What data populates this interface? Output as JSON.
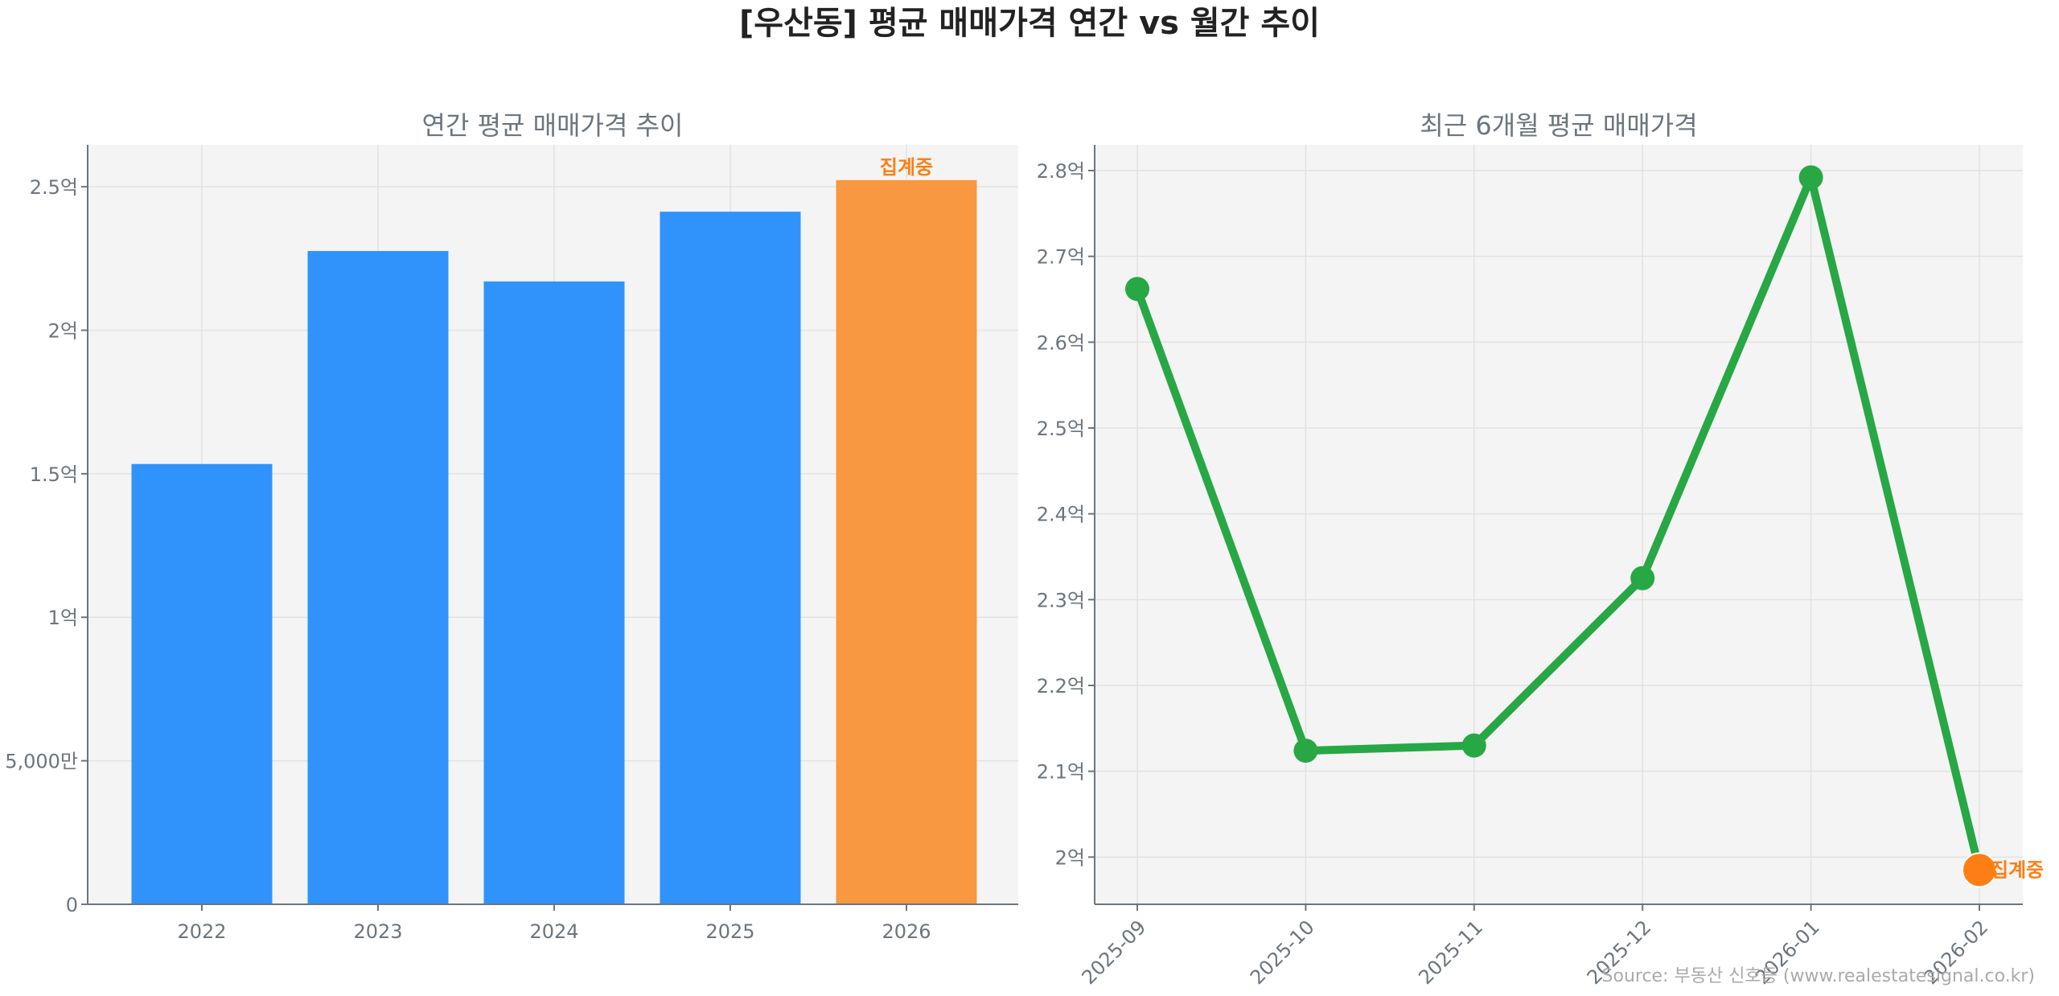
{
  "title": "[우산동] 평균 매매가격 연간 vs 월간 추이",
  "source": "Source: 부동산 신호등 (www.realestatesignal.co.kr)",
  "colors": {
    "bar": "#3093fb",
    "bar_pending": "#f89840",
    "line": "#28a745",
    "pending_marker": "#fd7e14",
    "pending_text": "#fd7e14",
    "axis_text": "#6c757d",
    "plot_bg": "#f4f4f4"
  },
  "chart_data": [
    {
      "type": "bar",
      "title": "연간 평균 매매가격 추이",
      "categories": [
        "2022",
        "2023",
        "2024",
        "2025",
        "2026"
      ],
      "values": [
        1.534,
        2.276,
        2.17,
        2.413,
        2.523
      ],
      "unit": "억",
      "ylim": [
        0,
        2.646
      ],
      "yticks": [
        0,
        0.5,
        1,
        1.5,
        2,
        2.5
      ],
      "ytick_labels": [
        "0",
        "5,000만",
        "1억",
        "1.5억",
        "2억",
        "2.5억"
      ],
      "pending_index": 4,
      "pending_label": "집계중",
      "grid": true
    },
    {
      "type": "line",
      "title": "최근 6개월 평균 매매가격",
      "categories": [
        "2025-09",
        "2025-10",
        "2025-11",
        "2025-12",
        "2026-01",
        "2026-02"
      ],
      "values": [
        2.662,
        2.124,
        2.13,
        2.325,
        2.792,
        1.985
      ],
      "unit": "억",
      "ylim": [
        1.945,
        2.83
      ],
      "yticks": [
        2.0,
        2.1,
        2.2,
        2.3,
        2.4,
        2.5,
        2.6,
        2.7,
        2.8
      ],
      "ytick_labels": [
        "2억",
        "2.1억",
        "2.2억",
        "2.3억",
        "2.4억",
        "2.5억",
        "2.6억",
        "2.7억",
        "2.8억"
      ],
      "pending_index": 5,
      "pending_label": "집계중",
      "grid": true
    }
  ]
}
